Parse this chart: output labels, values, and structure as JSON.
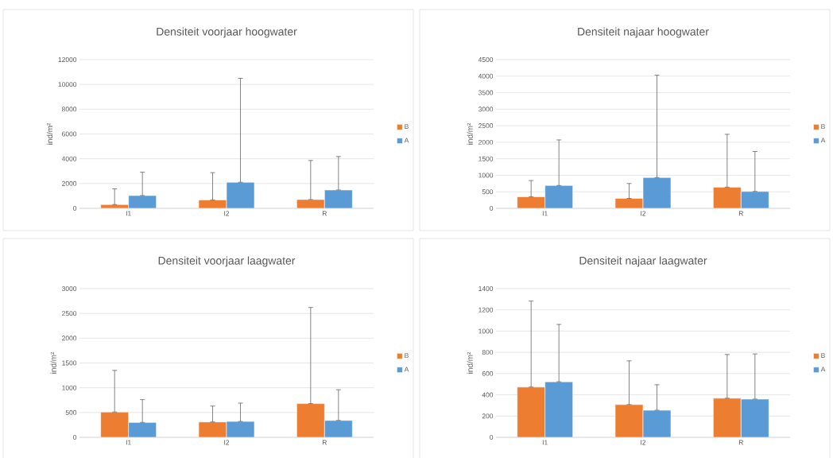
{
  "chart_data": [
    {
      "type": "bar",
      "title": "Densiteit voorjaar hoogwater",
      "ylabel": "ind/m²",
      "categories": [
        "I1",
        "I2",
        "R"
      ],
      "ylim": [
        0,
        12000
      ],
      "yticks": [
        0,
        2000,
        4000,
        6000,
        8000,
        10000,
        12000
      ],
      "grid": "y",
      "legend": "right",
      "series": [
        {
          "name": "B",
          "color": "#ed7d31",
          "values": [
            300,
            670,
            710
          ],
          "errors": [
            [
              300,
              1570
            ],
            [
              670,
              2880
            ],
            [
              710,
              3860
            ]
          ]
        },
        {
          "name": "A",
          "color": "#5b9bd5",
          "values": [
            1030,
            2100,
            1480
          ],
          "errors": [
            [
              1030,
              2920
            ],
            [
              2100,
              10490
            ],
            [
              1480,
              4180
            ]
          ]
        }
      ]
    },
    {
      "type": "bar",
      "title": "Densiteit najaar hoogwater",
      "ylabel": "ind/m²",
      "categories": [
        "I1",
        "I2",
        "R"
      ],
      "ylim": [
        0,
        4500
      ],
      "yticks": [
        0,
        500,
        1000,
        1500,
        2000,
        2500,
        3000,
        3500,
        4000,
        4500
      ],
      "grid": "y",
      "legend": "right",
      "series": [
        {
          "name": "B",
          "color": "#ed7d31",
          "values": [
            350,
            300,
            640
          ],
          "errors": [
            [
              350,
              840
            ],
            [
              300,
              750
            ],
            [
              640,
              2240
            ]
          ]
        },
        {
          "name": "A",
          "color": "#5b9bd5",
          "values": [
            690,
            930,
            510
          ],
          "errors": [
            [
              690,
              2070
            ],
            [
              930,
              4030
            ],
            [
              510,
              1720
            ]
          ]
        }
      ]
    },
    {
      "type": "bar",
      "title": "Densiteit voorjaar laagwater",
      "ylabel": "ind/m²",
      "categories": [
        "I1",
        "I2",
        "R"
      ],
      "ylim": [
        0,
        3000
      ],
      "yticks": [
        0,
        500,
        1000,
        1500,
        2000,
        2500,
        3000
      ],
      "grid": "y",
      "legend": "right",
      "series": [
        {
          "name": "B",
          "color": "#ed7d31",
          "values": [
            510,
            310,
            680
          ],
          "errors": [
            [
              510,
              1350
            ],
            [
              310,
              630
            ],
            [
              680,
              2620
            ]
          ]
        },
        {
          "name": "A",
          "color": "#5b9bd5",
          "values": [
            300,
            320,
            340
          ],
          "errors": [
            [
              300,
              760
            ],
            [
              320,
              690
            ],
            [
              340,
              960
            ]
          ]
        }
      ]
    },
    {
      "type": "bar",
      "title": "Densiteit najaar laagwater",
      "ylabel": "ind/m²",
      "categories": [
        "I1",
        "I2",
        "R"
      ],
      "ylim": [
        0,
        1400
      ],
      "yticks": [
        0,
        200,
        400,
        600,
        800,
        1000,
        1200,
        1400
      ],
      "grid": "y",
      "legend": "right",
      "series": [
        {
          "name": "B",
          "color": "#ed7d31",
          "values": [
            473,
            308,
            368
          ],
          "errors": [
            [
              473,
              1283
            ],
            [
              308,
              720
            ],
            [
              368,
              780
            ]
          ]
        },
        {
          "name": "A",
          "color": "#5b9bd5",
          "values": [
            523,
            255,
            360
          ],
          "errors": [
            [
              523,
              1063
            ],
            [
              255,
              495
            ],
            [
              360,
              785
            ]
          ]
        }
      ]
    }
  ]
}
